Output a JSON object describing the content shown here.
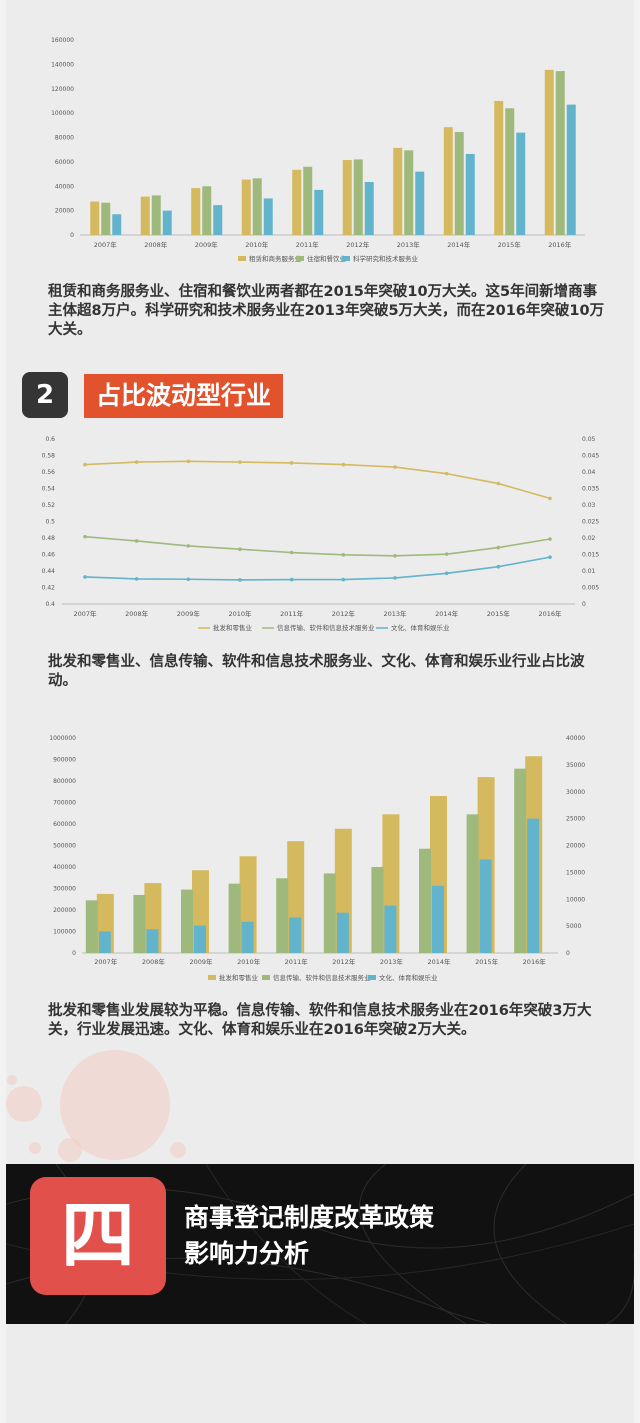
{
  "colors": {
    "yellow": "#d4b95e",
    "green": "#9fb97d",
    "blue": "#62b3cc",
    "orange": "#e2532d",
    "dark": "#353535"
  },
  "chart_data": [
    {
      "type": "bar",
      "categories": [
        "2007年",
        "2008年",
        "2009年",
        "2010年",
        "2011年",
        "2012年",
        "2013年",
        "2014年",
        "2015年",
        "2016年"
      ],
      "ylim": [
        0,
        160000
      ],
      "yticks": [
        "0",
        "20000",
        "40000",
        "60000",
        "80000",
        "100000",
        "120000",
        "140000",
        "160000"
      ],
      "series": [
        {
          "name": "租赁和商务服务业",
          "values": [
            27500,
            31500,
            38500,
            45500,
            53500,
            61500,
            71500,
            88500,
            110000,
            135500
          ]
        },
        {
          "name": "住宿和餐饮业",
          "values": [
            26500,
            32500,
            40000,
            46500,
            56000,
            62000,
            69500,
            84500,
            104000,
            134500
          ]
        },
        {
          "name": "科学研究和技术服务业",
          "values": [
            17000,
            20000,
            24500,
            30000,
            37000,
            43500,
            52000,
            66500,
            84000,
            107000
          ]
        }
      ],
      "legend": "bottom"
    },
    {
      "type": "line",
      "categories": [
        "2007年",
        "2008年",
        "2009年",
        "2010年",
        "2011年",
        "2012年",
        "2013年",
        "2014年",
        "2015年",
        "2016年"
      ],
      "ylim": [
        0.4,
        0.6
      ],
      "yticks": [
        "0.4",
        "0.42",
        "0.44",
        "0.46",
        "0.48",
        "0.5",
        "0.52",
        "0.54",
        "0.56",
        "0.58",
        "0.6"
      ],
      "y2lim": [
        0,
        0.05
      ],
      "y2ticks": [
        "0",
        "0.005",
        "0.01",
        "0.015",
        "0.02",
        "0.025",
        "0.03",
        "0.035",
        "0.04",
        "0.045",
        "0.05"
      ],
      "series": [
        {
          "name": "批发和零售业",
          "axis": "left",
          "values": [
            0.569,
            0.572,
            0.573,
            0.572,
            0.571,
            0.569,
            0.566,
            0.558,
            0.546,
            0.528
          ]
        },
        {
          "name": "信息传输、软件和信息技术服务业",
          "axis": "right",
          "values": [
            0.0204,
            0.0191,
            0.0176,
            0.0166,
            0.0156,
            0.0149,
            0.0146,
            0.0151,
            0.0171,
            0.0197
          ]
        },
        {
          "name": "文化、体育和娱乐业",
          "axis": "right",
          "values": [
            0.0082,
            0.0076,
            0.0075,
            0.0073,
            0.0074,
            0.0074,
            0.0079,
            0.0093,
            0.0113,
            0.0142
          ]
        }
      ],
      "legend": "bottom"
    },
    {
      "type": "bar",
      "categories": [
        "2007年",
        "2008年",
        "2009年",
        "2010年",
        "2011年",
        "2012年",
        "2013年",
        "2014年",
        "2015年",
        "2016年"
      ],
      "ylim": [
        0,
        1000000
      ],
      "yticks": [
        "0",
        "100000",
        "200000",
        "300000",
        "400000",
        "500000",
        "600000",
        "700000",
        "800000",
        "900000",
        "1000000"
      ],
      "y2lim": [
        0,
        40000
      ],
      "y2ticks": [
        "0",
        "5000",
        "10000",
        "15000",
        "20000",
        "25000",
        "30000",
        "35000",
        "40000"
      ],
      "series": [
        {
          "name": "批发和零售业",
          "axis": "left",
          "values": [
            275000,
            325000,
            385000,
            450000,
            520000,
            578000,
            645000,
            730000,
            818000,
            915000
          ]
        },
        {
          "name": "信息传输、软件和信息技术服务业",
          "axis": "right",
          "values": [
            9800,
            10800,
            11800,
            12900,
            13900,
            14800,
            16000,
            19400,
            25800,
            34300
          ]
        },
        {
          "name": "文化、体育和娱乐业",
          "axis": "right",
          "values": [
            4000,
            4400,
            5100,
            5800,
            6600,
            7500,
            8800,
            12500,
            17400,
            25000
          ]
        }
      ],
      "legend": "bottom"
    }
  ],
  "text1": "租赁和商务服务业、住宿和餐饮业两者都在2015年突破10万大关。这5年间新增商事主体超8万户。科学研究和技术服务业在2013年突破5万大关，而在2016年突破10万大关。",
  "section2": {
    "number": "2",
    "title": "占比波动型行业"
  },
  "text2": "批发和零售业、信息传输、软件和信息技术服务业、文化、体育和娱乐业行业占比波动。",
  "text3": "批发和零售业发展较为平稳。信息传输、软件和信息技术服务业在2016年突破3万大关，行业发展迅速。文化、体育和娱乐业在2016年突破2万大关。",
  "section4": {
    "number": "四",
    "title_line1": "商事登记制度改革政策",
    "title_line2": "影响力分析"
  }
}
